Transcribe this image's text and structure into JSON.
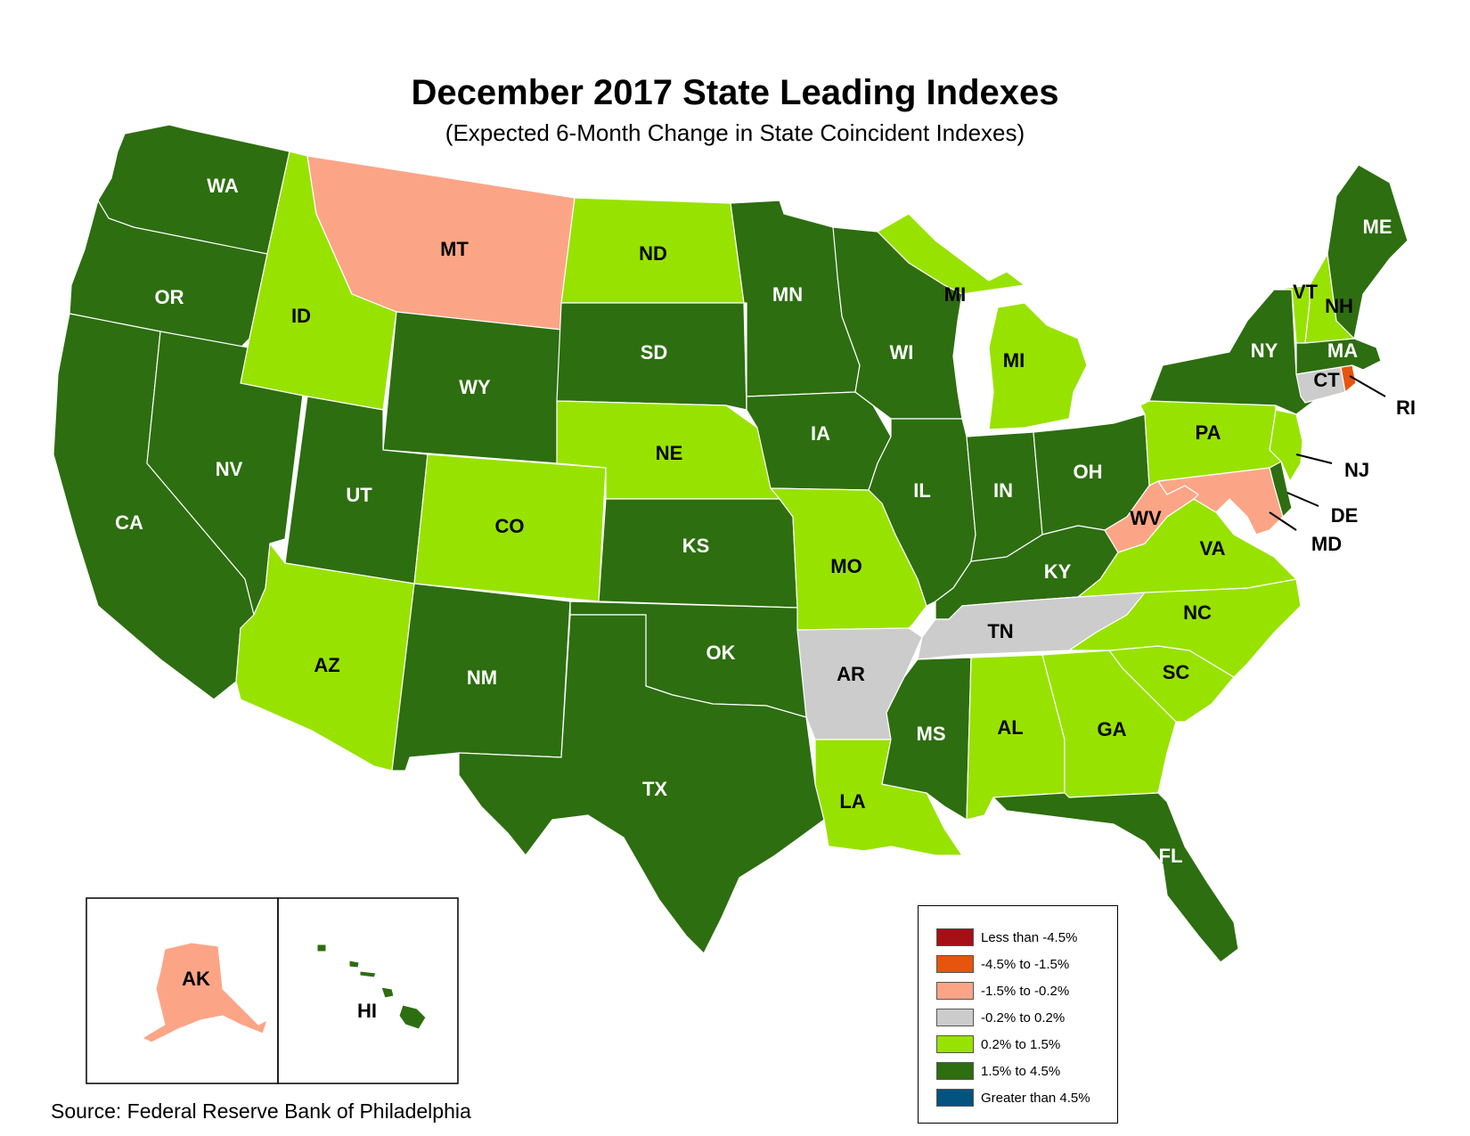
{
  "title": "December 2017 State Leading Indexes",
  "subtitle": "(Expected 6-Month Change in State Coincident Indexes)",
  "source": "Source: Federal Reserve Bank of Philadelphia",
  "categories": {
    "lt_m4_5": {
      "label": "Less than -4.5%",
      "color": "#a50f15"
    },
    "m4_5_m1_5": {
      "label": "-4.5% to -1.5%",
      "color": "#e6550d"
    },
    "m1_5_m0_2": {
      "label": "-1.5% to -0.2%",
      "color": "#fca586"
    },
    "m0_2_0_2": {
      "label": "-0.2% to 0.2%",
      "color": "#cccccc"
    },
    "p0_2_1_5": {
      "label": "0.2% to 1.5%",
      "color": "#98e200"
    },
    "p1_5_4_5": {
      "label": "1.5% to 4.5%",
      "color": "#2d6e10"
    },
    "gt_4_5": {
      "label": "Greater than 4.5%",
      "color": "#035381"
    }
  },
  "legend_order": [
    "lt_m4_5",
    "m4_5_m1_5",
    "m1_5_m0_2",
    "m0_2_0_2",
    "p0_2_1_5",
    "p1_5_4_5",
    "gt_4_5"
  ],
  "states": {
    "WA": "p1_5_4_5",
    "OR": "p1_5_4_5",
    "CA": "p1_5_4_5",
    "NV": "p1_5_4_5",
    "ID": "p0_2_1_5",
    "MT": "m1_5_m0_2",
    "WY": "p1_5_4_5",
    "UT": "p1_5_4_5",
    "AZ": "p0_2_1_5",
    "CO": "p0_2_1_5",
    "NM": "p1_5_4_5",
    "ND": "p0_2_1_5",
    "SD": "p1_5_4_5",
    "NE": "p0_2_1_5",
    "KS": "p1_5_4_5",
    "OK": "p1_5_4_5",
    "TX": "p1_5_4_5",
    "MN": "p1_5_4_5",
    "IA": "p1_5_4_5",
    "MO": "p0_2_1_5",
    "AR": "m0_2_0_2",
    "LA": "p0_2_1_5",
    "WI": "p1_5_4_5",
    "MI": "p0_2_1_5",
    "IL": "p1_5_4_5",
    "IN": "p1_5_4_5",
    "OH": "p1_5_4_5",
    "KY": "p1_5_4_5",
    "TN": "m0_2_0_2",
    "MS": "p1_5_4_5",
    "AL": "p0_2_1_5",
    "GA": "p0_2_1_5",
    "FL": "p1_5_4_5",
    "SC": "p0_2_1_5",
    "NC": "p0_2_1_5",
    "VA": "p0_2_1_5",
    "WV": "m1_5_m0_2",
    "MD": "m1_5_m0_2",
    "DE": "p1_5_4_5",
    "NJ": "p0_2_1_5",
    "PA": "p0_2_1_5",
    "NY": "p1_5_4_5",
    "CT": "m0_2_0_2",
    "RI": "m4_5_m1_5",
    "MA": "p1_5_4_5",
    "VT": "p0_2_1_5",
    "NH": "p0_2_1_5",
    "ME": "p1_5_4_5",
    "AK": "m1_5_m0_2",
    "HI": "p1_5_4_5"
  },
  "labels": {
    "WA": "WA",
    "OR": "OR",
    "CA": "CA",
    "NV": "NV",
    "ID": "ID",
    "MT": "MT",
    "WY": "WY",
    "UT": "UT",
    "AZ": "AZ",
    "CO": "CO",
    "NM": "NM",
    "ND": "ND",
    "SD": "SD",
    "NE": "NE",
    "KS": "KS",
    "OK": "OK",
    "TX": "TX",
    "MN": "MN",
    "IA": "IA",
    "MO": "MO",
    "AR": "AR",
    "LA": "LA",
    "WI": "WI",
    "MI_UP": "MI",
    "MI_LP": "MI",
    "IL": "IL",
    "IN": "IN",
    "OH": "OH",
    "KY": "KY",
    "TN": "TN",
    "MS": "MS",
    "AL": "AL",
    "GA": "GA",
    "FL": "FL",
    "SC": "SC",
    "NC": "NC",
    "VA": "VA",
    "WV": "WV",
    "MD": "MD",
    "DE": "DE",
    "NJ": "NJ",
    "PA": "PA",
    "NY": "NY",
    "CT": "CT",
    "RI": "RI",
    "MA": "MA",
    "VT": "VT",
    "NH": "NH",
    "ME": "ME",
    "AK": "AK",
    "HI": "HI"
  }
}
